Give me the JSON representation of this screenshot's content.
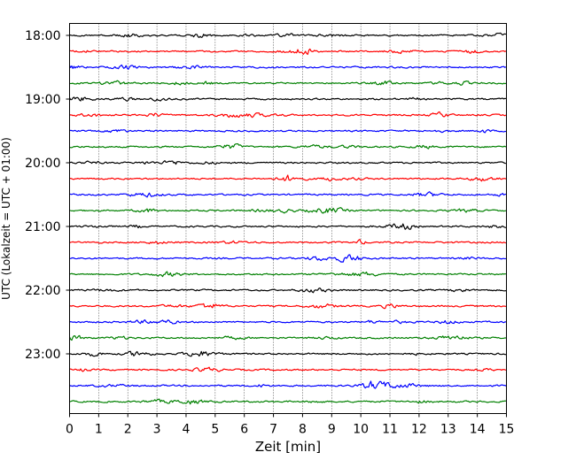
{
  "chart_data": {
    "type": "line",
    "title": "",
    "xlabel": "Zeit  [min]",
    "ylabel": "UTC (Lokalzeit = UTC + 01:00)",
    "xlim": [
      0,
      15
    ],
    "x_ticks": [
      "0",
      "1",
      "2",
      "3",
      "4",
      "5",
      "6",
      "7",
      "8",
      "9",
      "10",
      "11",
      "12",
      "13",
      "14",
      "15"
    ],
    "y_ticks": [
      {
        "label": "18:00",
        "row": 0
      },
      {
        "label": "19:00",
        "row": 4
      },
      {
        "label": "20:00",
        "row": 8
      },
      {
        "label": "21:00",
        "row": 12
      },
      {
        "label": "22:00",
        "row": 16
      },
      {
        "label": "23:00",
        "row": 20
      }
    ],
    "rows": 24,
    "row_interval_min": 15,
    "grid_x": true,
    "grid_style": "dotted",
    "trace_colors": [
      "#000000",
      "#ff0000",
      "#0000ff",
      "#008000"
    ]
  }
}
